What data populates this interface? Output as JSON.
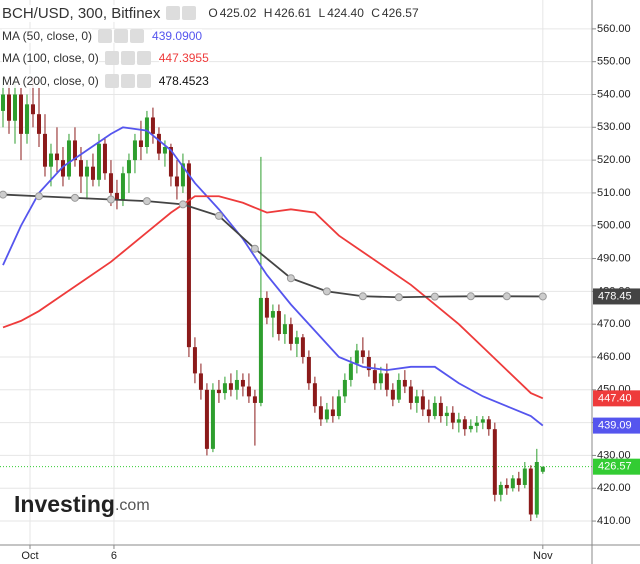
{
  "chart_data": {
    "type": "candlestick",
    "title": "BCH/USD, 300, Bitfinex",
    "ohlc_labels": [
      "O",
      "H",
      "L",
      "C"
    ],
    "ohlc_values": [
      "425.02",
      "426.61",
      "424.40",
      "426.57"
    ],
    "open": [
      535,
      540,
      532,
      540,
      528,
      537,
      534,
      528,
      518,
      522,
      520,
      515,
      526,
      520,
      515,
      518,
      514,
      525,
      516,
      510,
      508,
      516,
      520,
      526,
      524,
      533,
      528,
      522,
      524,
      515,
      512,
      519,
      463,
      455,
      450,
      432,
      450,
      449,
      452,
      450,
      453,
      451,
      448,
      446,
      478,
      472,
      474,
      467,
      470,
      464,
      466,
      460,
      452,
      445,
      441,
      444,
      442,
      448,
      453,
      458,
      462,
      460,
      456,
      452,
      455,
      450,
      447,
      453,
      451,
      446,
      448,
      444,
      442,
      446,
      442,
      443,
      440,
      441,
      438,
      439,
      440,
      441,
      438,
      418,
      421,
      420,
      423,
      421,
      426,
      412,
      425.02
    ],
    "high": [
      545,
      543,
      545,
      542,
      540,
      545,
      542,
      534,
      525,
      530,
      524,
      528,
      530,
      524,
      520,
      522,
      528,
      527,
      520,
      514,
      518,
      522,
      528,
      532,
      535,
      536,
      530,
      526,
      525,
      520,
      522,
      520,
      466,
      458,
      452,
      452,
      453,
      454,
      455,
      456,
      455,
      455,
      450,
      521,
      480,
      476,
      476,
      473,
      472,
      468,
      467,
      462,
      454,
      448,
      446,
      448,
      450,
      455,
      460,
      464,
      466,
      462,
      458,
      457,
      458,
      452,
      455,
      456,
      453,
      450,
      450,
      447,
      448,
      448,
      445,
      445,
      443,
      442,
      441,
      442,
      442,
      442,
      440,
      422,
      423,
      424,
      425,
      428,
      427,
      432,
      426.61
    ],
    "low": [
      530,
      528,
      525,
      520,
      525,
      530,
      524,
      515,
      512,
      516,
      512,
      514,
      518,
      510,
      508,
      512,
      512,
      514,
      506,
      505,
      506,
      510,
      516,
      520,
      522,
      525,
      520,
      518,
      512,
      508,
      510,
      460,
      452,
      447,
      430,
      431,
      446,
      447,
      448,
      447,
      448,
      446,
      433,
      445,
      470,
      466,
      465,
      464,
      462,
      460,
      458,
      450,
      443,
      439,
      440,
      440,
      441,
      446,
      451,
      455,
      458,
      454,
      450,
      450,
      448,
      445,
      446,
      449,
      444,
      443,
      442,
      440,
      441,
      440,
      439,
      438,
      437,
      436,
      437,
      437,
      438,
      436,
      416,
      416,
      418,
      419,
      419,
      420,
      410,
      411,
      424.4
    ],
    "close": [
      540,
      532,
      540,
      528,
      537,
      534,
      528,
      518,
      522,
      520,
      515,
      526,
      520,
      515,
      518,
      514,
      525,
      516,
      510,
      508,
      516,
      520,
      526,
      524,
      533,
      528,
      522,
      524,
      515,
      512,
      519,
      463,
      455,
      450,
      432,
      450,
      449,
      452,
      450,
      453,
      451,
      448,
      446,
      478,
      472,
      474,
      467,
      470,
      464,
      466,
      460,
      452,
      445,
      441,
      444,
      442,
      448,
      453,
      458,
      462,
      460,
      456,
      452,
      455,
      450,
      447,
      453,
      451,
      446,
      448,
      444,
      442,
      446,
      442,
      443,
      440,
      441,
      438,
      439,
      440,
      441,
      438,
      418,
      421,
      420,
      423,
      421,
      426,
      412,
      428,
      426.57
    ],
    "up_color": "#2e9e2e",
    "down_color": "#8b1a1a",
    "last_price_color": "#33cc33",
    "ma": [
      {
        "name": "MA (50, close, 0)",
        "color": "#5555ee",
        "legend_label": "439.0900",
        "axis_label": "439.09",
        "x": [
          0,
          3,
          6,
          10,
          14,
          18,
          20,
          24,
          28,
          32,
          36,
          40,
          44,
          48,
          52,
          56,
          60,
          64,
          68,
          72,
          76,
          80,
          84,
          88,
          90
        ],
        "values": [
          488,
          500,
          510,
          518,
          523,
          528,
          530,
          529,
          523,
          513,
          505,
          496,
          485,
          476,
          468,
          460,
          457,
          456,
          457,
          457,
          452,
          448,
          445,
          442,
          439.09
        ]
      },
      {
        "name": "MA (100, close, 0)",
        "color": "#ee3b3b",
        "legend_label": "447.3955",
        "axis_label": "447.40",
        "x": [
          0,
          3,
          6,
          10,
          14,
          18,
          20,
          24,
          28,
          32,
          36,
          40,
          44,
          48,
          52,
          56,
          60,
          64,
          68,
          72,
          76,
          80,
          84,
          88,
          90
        ],
        "values": [
          469,
          471,
          474,
          479,
          484,
          489,
          492,
          498,
          504,
          509,
          509,
          507,
          504,
          505,
          504,
          497,
          492,
          487,
          482,
          476,
          470,
          463,
          456,
          449,
          447.3955
        ]
      },
      {
        "name": "MA (200, close, 0)",
        "color": "#444444",
        "legend_label": "478.4523",
        "axis_label": "478.45",
        "markers": true,
        "x": [
          0,
          6,
          12,
          18,
          24,
          30,
          36,
          42,
          48,
          54,
          60,
          66,
          72,
          78,
          84,
          90
        ],
        "values": [
          509.5,
          509,
          508.5,
          508,
          507.5,
          506.5,
          503,
          493,
          484,
          480,
          478.5,
          478.2,
          478.4,
          478.5,
          478.5,
          478.4523
        ]
      }
    ],
    "ylim": [
      402.7,
      568.8
    ],
    "yticks": [
      {
        "value": 560,
        "label": "560.00"
      },
      {
        "value": 550,
        "label": "550.00"
      },
      {
        "value": 540,
        "label": "540.00"
      },
      {
        "value": 530,
        "label": "530.00"
      },
      {
        "value": 520,
        "label": "520.00"
      },
      {
        "value": 510,
        "label": "510.00"
      },
      {
        "value": 500,
        "label": "500.00"
      },
      {
        "value": 490,
        "label": "490.00"
      },
      {
        "value": 480,
        "label": "480.00"
      },
      {
        "value": 470,
        "label": "470.00"
      },
      {
        "value": 460,
        "label": "460.00"
      },
      {
        "value": 450,
        "label": "450.00"
      },
      {
        "value": 440,
        "label": "440.00"
      },
      {
        "value": 430,
        "label": "430.00"
      },
      {
        "value": 420,
        "label": "420.00"
      },
      {
        "value": 410,
        "label": "410.00"
      }
    ],
    "xlim": [
      -0.5,
      98.2
    ],
    "xticks": [
      {
        "value": 4.5,
        "label": "Oct"
      },
      {
        "value": 18.5,
        "label": "6"
      },
      {
        "value": 90,
        "label": "Nov"
      }
    ],
    "grid": true,
    "watermark": [
      "Investing",
      ".com"
    ]
  }
}
